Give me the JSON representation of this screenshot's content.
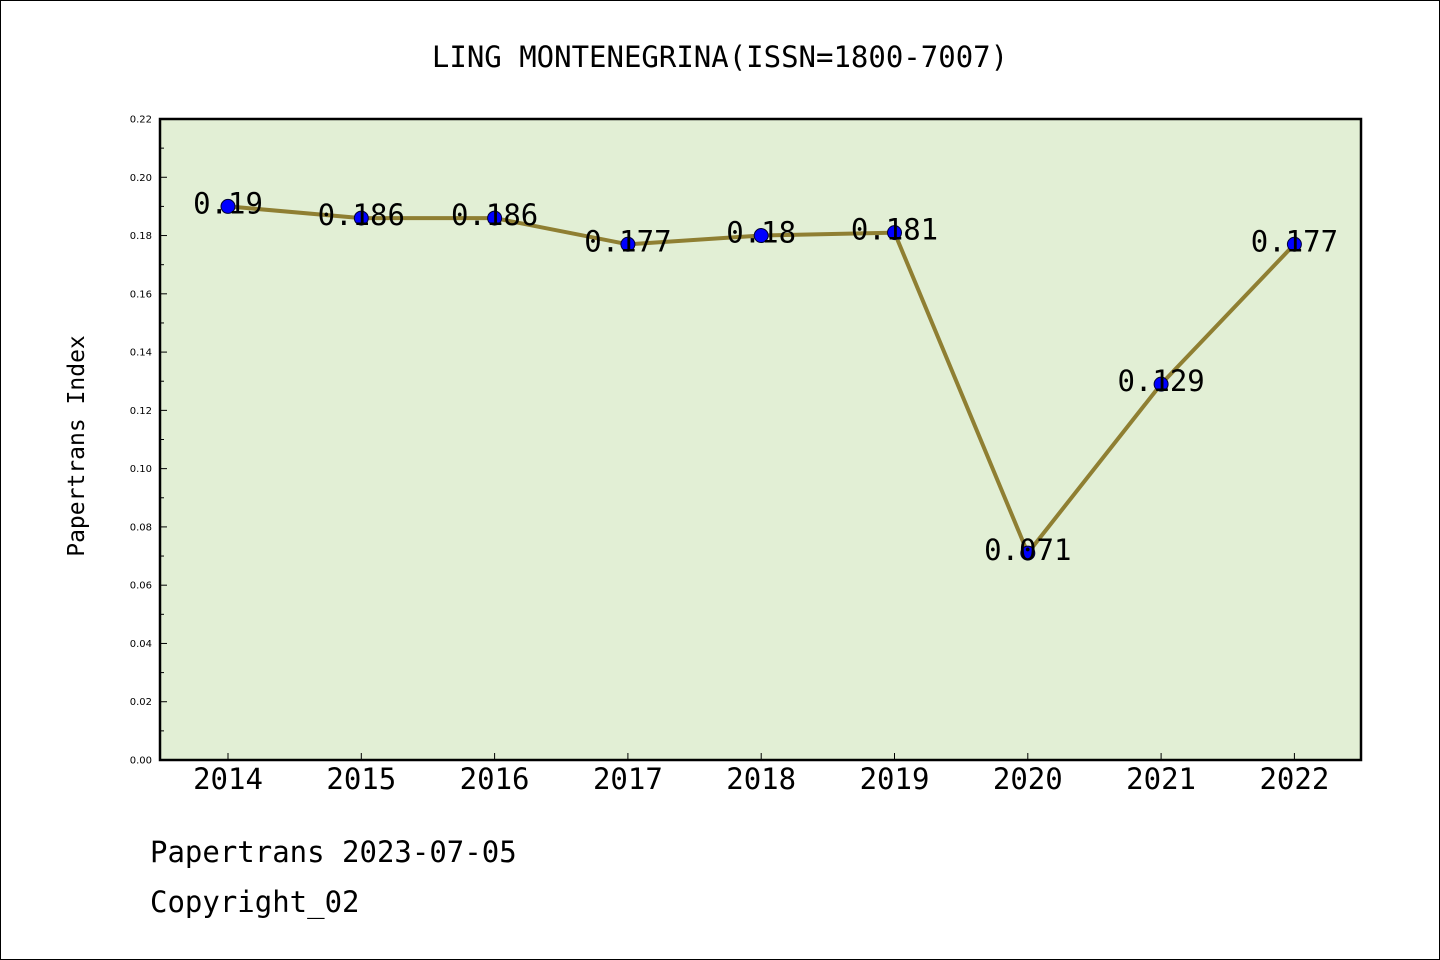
{
  "chart_data": {
    "type": "line",
    "title": "LING MONTENEGRINA(ISSN=1800-7007)",
    "ylabel": "Papertrans Index",
    "xlabel": "",
    "categories": [
      "2014",
      "2015",
      "2016",
      "2017",
      "2018",
      "2019",
      "2020",
      "2021",
      "2022"
    ],
    "values": [
      0.19,
      0.186,
      0.186,
      0.177,
      0.18,
      0.181,
      0.071,
      0.129,
      0.177
    ],
    "data_labels": [
      "0.19",
      "0.186",
      "0.186",
      "0.177",
      "0.18",
      "0.181",
      "0.071",
      "0.129",
      "0.177"
    ],
    "ylim": [
      0.0,
      0.22
    ],
    "yticks": [
      "0.00",
      "0.02",
      "0.04",
      "0.06",
      "0.08",
      "0.10",
      "0.12",
      "0.14",
      "0.16",
      "0.18",
      "0.20",
      "0.22"
    ],
    "grid": false,
    "legend": "none",
    "colors": {
      "plot_background": "#e2efd5",
      "line": "#8f7f32",
      "marker": "#0000ff"
    }
  },
  "footer": {
    "line1": "Papertrans 2023-07-05",
    "line2": "Copyright_02"
  }
}
